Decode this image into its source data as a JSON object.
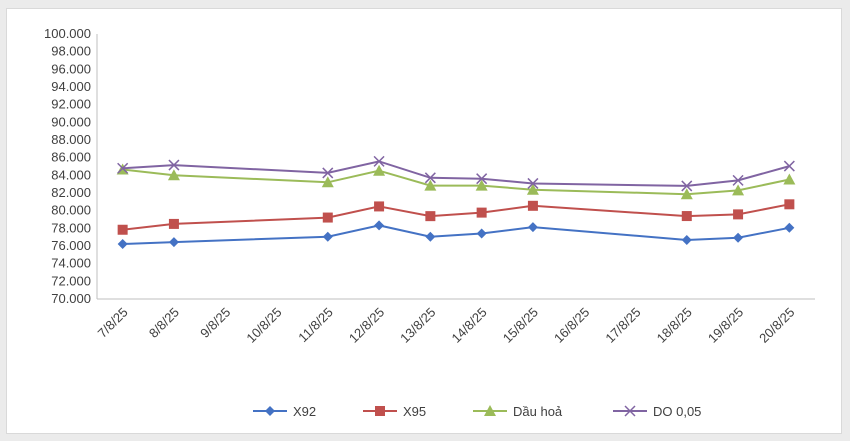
{
  "chart_data": {
    "type": "line",
    "categories": [
      "7/8/25",
      "8/8/25",
      "9/8/25",
      "10/8/25",
      "11/8/25",
      "12/8/25",
      "13/8/25",
      "14/8/25",
      "15/8/25",
      "16/8/25",
      "17/8/25",
      "18/8/25",
      "19/8/25",
      "20/8/25"
    ],
    "yticks": [
      "70.000",
      "72.000",
      "74.000",
      "76.000",
      "78.000",
      "80.000",
      "82.000",
      "84.000",
      "86.000",
      "88.000",
      "90.000",
      "92.000",
      "94.000",
      "96.000",
      "98.000",
      "100.000"
    ],
    "ylim": [
      70000,
      100000
    ],
    "ystep": 2000,
    "grid": false,
    "legend_position": "bottom",
    "series": [
      {
        "name": "X92",
        "color": "#4472c4",
        "marker": "diamond",
        "values": [
          76230,
          76440,
          null,
          null,
          77050,
          78330,
          77050,
          77420,
          78140,
          null,
          null,
          76680,
          76940,
          78060
        ]
      },
      {
        "name": "X95",
        "color": "#c0504d",
        "marker": "square",
        "values": [
          77840,
          78500,
          null,
          null,
          79220,
          80480,
          79380,
          79780,
          80550,
          null,
          null,
          79390,
          79580,
          80720
        ]
      },
      {
        "name": "Dầu hoả",
        "color": "#9bbb59",
        "marker": "triangle",
        "values": [
          84660,
          84010,
          null,
          null,
          83210,
          84520,
          82840,
          82840,
          82370,
          null,
          null,
          81860,
          82300,
          83530
        ]
      },
      {
        "name": "DO 0,05",
        "color": "#8064a2",
        "marker": "x",
        "values": [
          84800,
          85160,
          null,
          null,
          84270,
          85580,
          83720,
          83620,
          83080,
          null,
          null,
          82800,
          83430,
          85050
        ]
      }
    ]
  }
}
